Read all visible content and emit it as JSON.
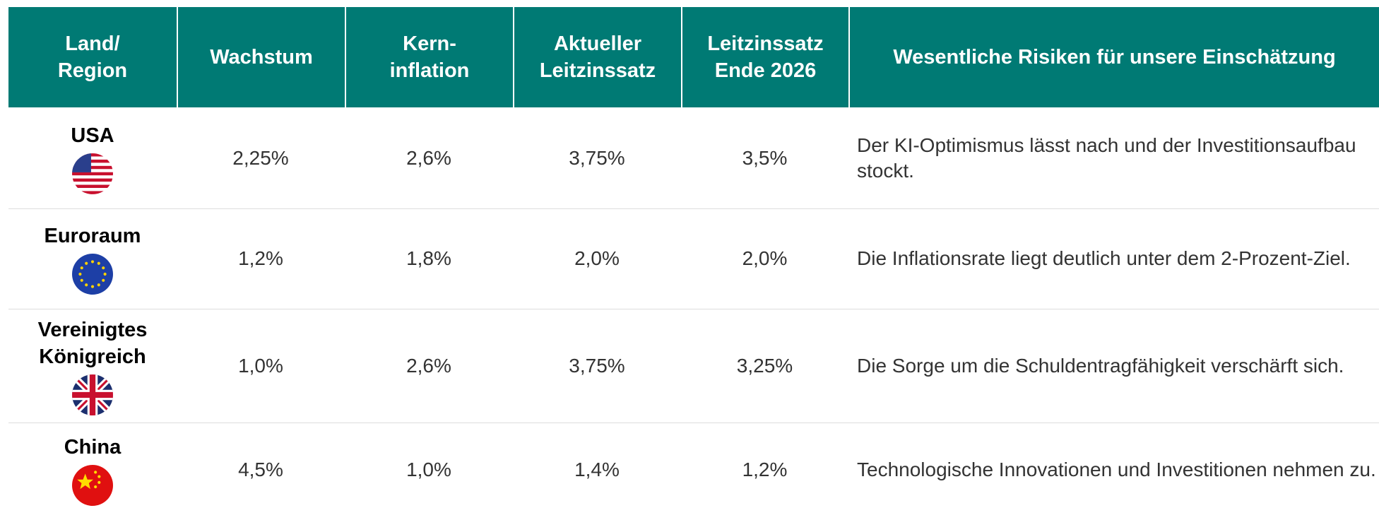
{
  "table": {
    "headers": [
      [
        "Land/",
        "Region"
      ],
      [
        "Wachstum"
      ],
      [
        "Kern-",
        "inflation"
      ],
      [
        "Aktueller",
        "Leitzinssatz"
      ],
      [
        "Leitzinssatz",
        "Ende 2026"
      ],
      [
        "Wesentliche Risiken für unsere Einschätzung"
      ]
    ],
    "rows": [
      [
        "USA",
        "2,25%",
        "2,6%",
        "3,75%",
        "3,5%",
        "Der KI-Optimismus lässt nach und der Investitionsaufbau stockt."
      ],
      [
        "Euroraum",
        "1,2%",
        "1,8%",
        "2,0%",
        "2,0%",
        "Die Inflationsrate liegt deutlich unter dem 2-Prozent-Ziel."
      ],
      [
        "Vereinigtes Königreich",
        "1,0%",
        "2,6%",
        "3,75%",
        "3,25%",
        "Die Sorge um die Schuldentragfähigkeit verschärft sich."
      ],
      [
        "China",
        "4,5%",
        "1,0%",
        "1,4%",
        "1,2%",
        "Technologische Innovationen und Investitionen nehmen zu."
      ]
    ]
  }
}
